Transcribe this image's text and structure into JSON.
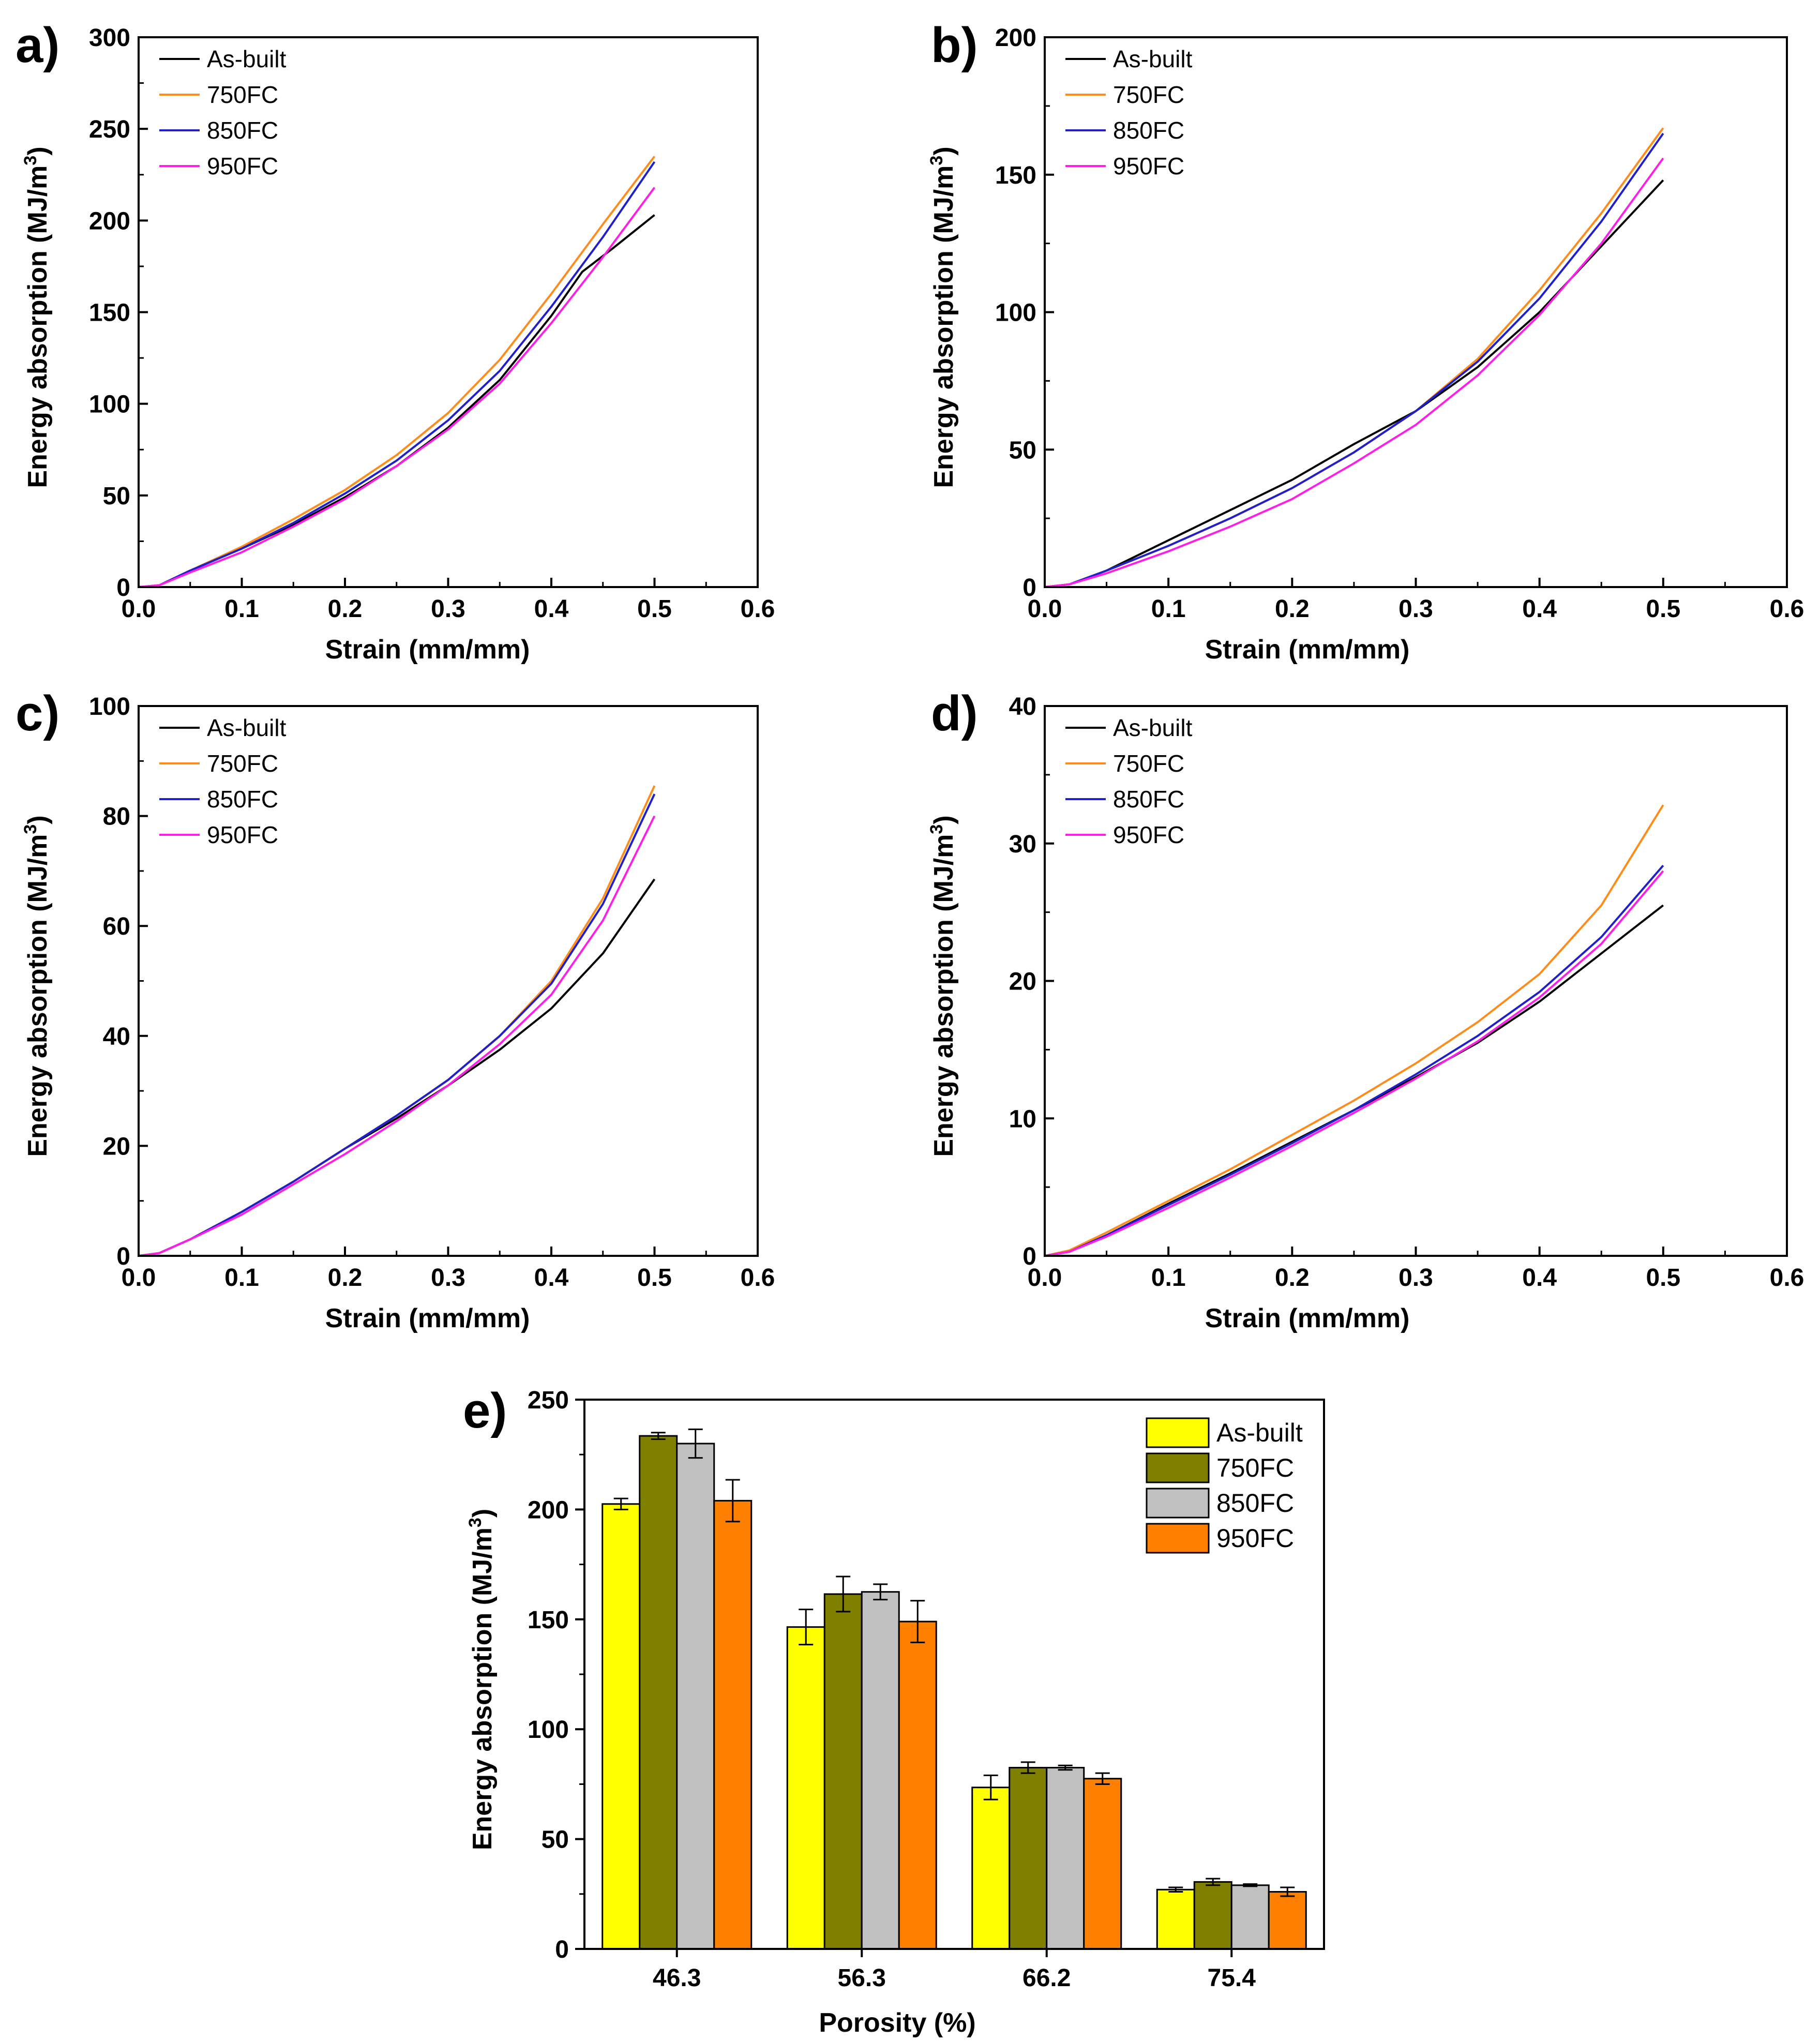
{
  "colors": {
    "as_built": "#000000",
    "fc750": "#ff8c1a",
    "fc850": "#1f1fcc",
    "fc950": "#ff1ee6",
    "bar_as_built": "#ffff00",
    "bar_fc750": "#808000",
    "bar_fc850": "#c0c0c0",
    "bar_fc950": "#ff8000"
  },
  "chart_data": [
    {
      "id": "a",
      "panel_label": "a)",
      "type": "line",
      "xlabel": "Strain (mm/mm)",
      "ylabel": "Energy absorption (MJ/m",
      "ylabel_sup": "3",
      "ylabel_end": ")",
      "xlim": [
        0,
        0.6
      ],
      "ylim": [
        0,
        300
      ],
      "xticks": [
        "0.0",
        "0.1",
        "0.2",
        "0.3",
        "0.4",
        "0.5",
        "0.6"
      ],
      "yticks": [
        "0",
        "50",
        "100",
        "150",
        "200",
        "250",
        "300"
      ],
      "legend": [
        "As-built",
        "750FC",
        "850FC",
        "950FC"
      ],
      "series": [
        {
          "name": "As-built",
          "x": [
            0,
            0.02,
            0.05,
            0.1,
            0.15,
            0.2,
            0.25,
            0.3,
            0.35,
            0.4,
            0.43,
            0.46,
            0.5
          ],
          "y": [
            0,
            1,
            9,
            21,
            34,
            49,
            66,
            87,
            113,
            148,
            172,
            185,
            203
          ]
        },
        {
          "name": "750FC",
          "x": [
            0,
            0.02,
            0.05,
            0.1,
            0.15,
            0.2,
            0.25,
            0.3,
            0.35,
            0.4,
            0.45,
            0.5
          ],
          "y": [
            0,
            1,
            9,
            22,
            37,
            53,
            72,
            95,
            124,
            160,
            198,
            235
          ]
        },
        {
          "name": "850FC",
          "x": [
            0,
            0.02,
            0.05,
            0.1,
            0.15,
            0.2,
            0.25,
            0.3,
            0.35,
            0.4,
            0.45,
            0.5
          ],
          "y": [
            0,
            1,
            9,
            21,
            35,
            51,
            69,
            91,
            118,
            153,
            191,
            232
          ]
        },
        {
          "name": "950FC",
          "x": [
            0,
            0.02,
            0.05,
            0.1,
            0.15,
            0.2,
            0.25,
            0.3,
            0.35,
            0.4,
            0.45,
            0.5
          ],
          "y": [
            0,
            1,
            8,
            19,
            33,
            48,
            66,
            86,
            111,
            144,
            180,
            218
          ]
        }
      ]
    },
    {
      "id": "b",
      "panel_label": "b)",
      "type": "line",
      "xlabel": "Strain (mm/mm)",
      "ylabel": "Energy absorption (MJ/m",
      "ylabel_sup": "3",
      "ylabel_end": ")",
      "xlim": [
        0,
        0.6
      ],
      "ylim": [
        0,
        200
      ],
      "xticks": [
        "0.0",
        "0.1",
        "0.2",
        "0.3",
        "0.4",
        "0.5",
        "0.6"
      ],
      "yticks": [
        "0",
        "50",
        "100",
        "150",
        "200"
      ],
      "legend": [
        "As-built",
        "750FC",
        "850FC",
        "950FC"
      ],
      "series": [
        {
          "name": "As-built",
          "x": [
            0,
            0.02,
            0.05,
            0.1,
            0.15,
            0.2,
            0.25,
            0.3,
            0.35,
            0.4,
            0.45,
            0.5
          ],
          "y": [
            0,
            1,
            6,
            17,
            28,
            39,
            52,
            64,
            80,
            100,
            124,
            148
          ]
        },
        {
          "name": "750FC",
          "x": [
            0,
            0.02,
            0.05,
            0.1,
            0.15,
            0.2,
            0.25,
            0.3,
            0.35,
            0.4,
            0.45,
            0.5
          ],
          "y": [
            0,
            1,
            6,
            15,
            25,
            36,
            49,
            64,
            83,
            108,
            136,
            167
          ]
        },
        {
          "name": "850FC",
          "x": [
            0,
            0.02,
            0.05,
            0.1,
            0.15,
            0.2,
            0.25,
            0.3,
            0.35,
            0.4,
            0.45,
            0.5
          ],
          "y": [
            0,
            1,
            6,
            15,
            25,
            36,
            49,
            64,
            82,
            105,
            133,
            165
          ]
        },
        {
          "name": "950FC",
          "x": [
            0,
            0.02,
            0.05,
            0.1,
            0.15,
            0.2,
            0.25,
            0.3,
            0.35,
            0.4,
            0.45,
            0.5
          ],
          "y": [
            0,
            1,
            5,
            13,
            22,
            32,
            45,
            59,
            77,
            99,
            125,
            156
          ]
        }
      ]
    },
    {
      "id": "c",
      "panel_label": "c)",
      "type": "line",
      "xlabel": "Strain (mm/mm)",
      "ylabel": "Energy absorption (MJ/m",
      "ylabel_sup": "3",
      "ylabel_end": ")",
      "xlim": [
        0,
        0.6
      ],
      "ylim": [
        0,
        100
      ],
      "xticks": [
        "0.0",
        "0.1",
        "0.2",
        "0.3",
        "0.4",
        "0.5",
        "0.6"
      ],
      "yticks": [
        "0",
        "20",
        "40",
        "60",
        "80",
        "100"
      ],
      "legend": [
        "As-built",
        "750FC",
        "850FC",
        "950FC"
      ],
      "series": [
        {
          "name": "As-built",
          "x": [
            0,
            0.02,
            0.05,
            0.1,
            0.15,
            0.2,
            0.25,
            0.3,
            0.35,
            0.4,
            0.45,
            0.5
          ],
          "y": [
            0,
            0.5,
            3,
            8,
            13.5,
            19.5,
            25,
            31,
            37.5,
            45,
            55,
            68.5
          ]
        },
        {
          "name": "750FC",
          "x": [
            0,
            0.02,
            0.05,
            0.1,
            0.15,
            0.2,
            0.25,
            0.3,
            0.35,
            0.4,
            0.45,
            0.5
          ],
          "y": [
            0,
            0.5,
            3,
            8,
            13.5,
            19.5,
            25.5,
            32,
            40,
            50,
            65,
            85.5
          ]
        },
        {
          "name": "850FC",
          "x": [
            0,
            0.02,
            0.05,
            0.1,
            0.15,
            0.2,
            0.25,
            0.3,
            0.35,
            0.4,
            0.45,
            0.5
          ],
          "y": [
            0,
            0.5,
            3,
            8,
            13.5,
            19.5,
            25.5,
            32,
            40,
            49.5,
            64,
            84
          ]
        },
        {
          "name": "950FC",
          "x": [
            0,
            0.02,
            0.05,
            0.1,
            0.15,
            0.2,
            0.25,
            0.3,
            0.35,
            0.4,
            0.45,
            0.5
          ],
          "y": [
            0,
            0.5,
            3,
            7.5,
            13,
            18.5,
            24.5,
            31,
            38.5,
            47.5,
            61,
            80
          ]
        }
      ]
    },
    {
      "id": "d",
      "panel_label": "d)",
      "type": "line",
      "xlabel": "Strain (mm/mm)",
      "ylabel": "Energy absorption (MJ/m",
      "ylabel_sup": "3",
      "ylabel_end": ")",
      "xlim": [
        0,
        0.6
      ],
      "ylim": [
        0,
        40
      ],
      "xticks": [
        "0.0",
        "0.1",
        "0.2",
        "0.3",
        "0.4",
        "0.5",
        "0.6"
      ],
      "yticks": [
        "0",
        "10",
        "20",
        "30",
        "40"
      ],
      "legend": [
        "As-built",
        "750FC",
        "850FC",
        "950FC"
      ],
      "series": [
        {
          "name": "As-built",
          "x": [
            0,
            0.02,
            0.05,
            0.1,
            0.15,
            0.2,
            0.25,
            0.3,
            0.35,
            0.4,
            0.45,
            0.5
          ],
          "y": [
            0,
            0.3,
            1.5,
            3.8,
            6,
            8.3,
            10.6,
            13,
            15.5,
            18.5,
            22,
            25.5
          ]
        },
        {
          "name": "750FC",
          "x": [
            0,
            0.02,
            0.05,
            0.1,
            0.15,
            0.2,
            0.25,
            0.3,
            0.35,
            0.4,
            0.45,
            0.5
          ],
          "y": [
            0,
            0.4,
            1.7,
            4,
            6.3,
            8.8,
            11.3,
            14,
            17,
            20.5,
            25.5,
            32.8
          ]
        },
        {
          "name": "850FC",
          "x": [
            0,
            0.02,
            0.05,
            0.1,
            0.15,
            0.2,
            0.25,
            0.3,
            0.35,
            0.4,
            0.45,
            0.5
          ],
          "y": [
            0,
            0.3,
            1.5,
            3.7,
            5.9,
            8.2,
            10.6,
            13.2,
            16,
            19.2,
            23.2,
            28.4
          ]
        },
        {
          "name": "950FC",
          "x": [
            0,
            0.02,
            0.05,
            0.1,
            0.15,
            0.2,
            0.25,
            0.3,
            0.35,
            0.4,
            0.45,
            0.5
          ],
          "y": [
            0,
            0.3,
            1.4,
            3.5,
            5.7,
            8,
            10.4,
            12.9,
            15.6,
            18.8,
            22.7,
            28
          ]
        }
      ]
    },
    {
      "id": "e",
      "panel_label": "e)",
      "type": "bar",
      "xlabel": "Porosity (%)",
      "ylabel": "Energy absorption (MJ/m",
      "ylabel_sup": "3",
      "ylabel_end": ")",
      "ylim": [
        0,
        250
      ],
      "yticks": [
        "0",
        "50",
        "100",
        "150",
        "200",
        "250"
      ],
      "categories": [
        "46.3",
        "56.3",
        "66.2",
        "75.4"
      ],
      "legend": [
        "As-built",
        "750FC",
        "850FC",
        "950FC"
      ],
      "series": [
        {
          "name": "As-built",
          "values": [
            202.5,
            146.5,
            73.5,
            27
          ],
          "errors": [
            2.5,
            8,
            5.5,
            1
          ]
        },
        {
          "name": "750FC",
          "values": [
            233.5,
            161.5,
            82.5,
            30.5
          ],
          "errors": [
            1.5,
            8,
            2.5,
            1.5
          ]
        },
        {
          "name": "850FC",
          "values": [
            230,
            162.5,
            82.5,
            29
          ],
          "errors": [
            6.5,
            3.5,
            1,
            0.5
          ]
        },
        {
          "name": "950FC",
          "values": [
            204,
            149,
            77.5,
            26
          ],
          "errors": [
            9.5,
            9.5,
            2.5,
            2
          ]
        }
      ]
    }
  ]
}
